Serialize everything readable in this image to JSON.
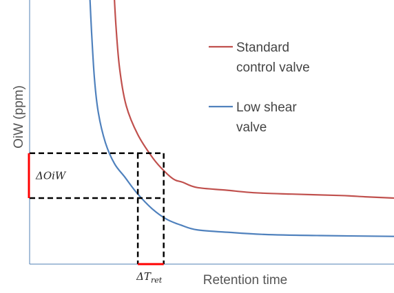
{
  "chart_data": {
    "type": "line",
    "title": "",
    "xlabel": "Retention time",
    "ylabel": "OiW (ppm)",
    "grid": false,
    "legend_position": "right",
    "series": [
      {
        "name": "Standard control valve",
        "color": "#C0504D",
        "points": [
          [
            0.231,
            1.05
          ],
          [
            0.237,
            0.9
          ],
          [
            0.247,
            0.74
          ],
          [
            0.265,
            0.6
          ],
          [
            0.297,
            0.49
          ],
          [
            0.339,
            0.4
          ],
          [
            0.371,
            0.35
          ],
          [
            0.397,
            0.32
          ],
          [
            0.42,
            0.31
          ],
          [
            0.459,
            0.29
          ],
          [
            0.54,
            0.28
          ],
          [
            0.62,
            0.27
          ],
          [
            0.72,
            0.265
          ],
          [
            0.85,
            0.26
          ],
          [
            0.92,
            0.255
          ],
          [
            1.0,
            0.25
          ]
        ]
      },
      {
        "name": "Low shear valve",
        "color": "#4F81BD",
        "points": [
          [
            0.164,
            1.05
          ],
          [
            0.17,
            0.88
          ],
          [
            0.178,
            0.7
          ],
          [
            0.189,
            0.57
          ],
          [
            0.208,
            0.46
          ],
          [
            0.233,
            0.38
          ],
          [
            0.261,
            0.33
          ],
          [
            0.294,
            0.27
          ],
          [
            0.336,
            0.21
          ],
          [
            0.376,
            0.17
          ],
          [
            0.415,
            0.148
          ],
          [
            0.459,
            0.13
          ],
          [
            0.55,
            0.12
          ],
          [
            0.65,
            0.112
          ],
          [
            0.8,
            0.108
          ],
          [
            1.0,
            0.105
          ]
        ]
      }
    ],
    "annotations": {
      "delta_oiw": {
        "label": "ΔOiW",
        "y_upper": 0.42,
        "y_lower": 0.25
      },
      "delta_t": {
        "label": "ΔT",
        "label_sub": "ret",
        "x_left": 0.297,
        "x_right": 0.368
      }
    },
    "xlim": [
      0,
      1
    ],
    "ylim": [
      0,
      1
    ]
  }
}
